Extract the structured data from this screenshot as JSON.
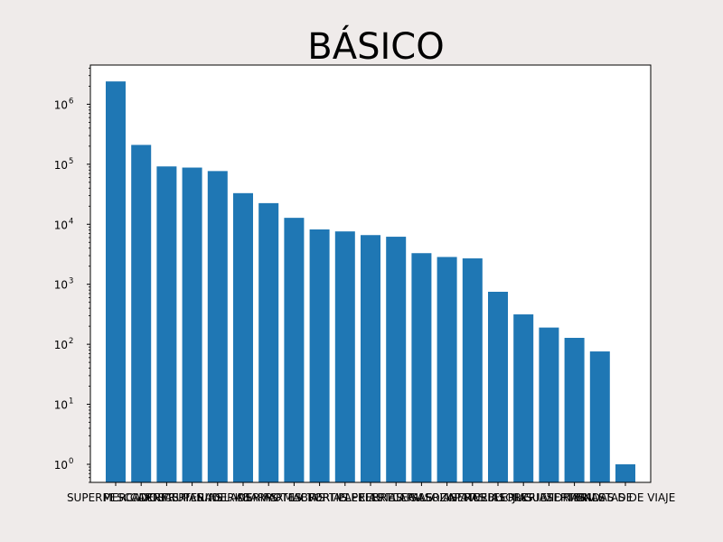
{
  "chart_data": {
    "type": "bar",
    "title": "BÁSICO",
    "xlabel": "",
    "ylabel": "",
    "yscale": "log",
    "ylim": [
      0.5,
      4500000
    ],
    "grid": false,
    "bar_color": "#1f77b4",
    "background": "#efebea",
    "ytick_base": "10",
    "ytick_exponents": [
      "0",
      "1",
      "2",
      "3",
      "4",
      "5",
      "6"
    ],
    "categories": [
      "SUPERMERCADOS",
      "PESCADERIAS",
      "CARNICERIAS",
      "FRUTERIAS",
      "PANADERIAS",
      "HELADERIAS",
      "ABARROTES",
      "FARMACIAS",
      "LIBRERIAS",
      "TORTILLERIAS",
      "PAPELERIAS",
      "FERRETERIAS",
      "TLAPALERIAS",
      "GASOLINERAS",
      "ZAPATERIAS",
      "MUEBLERIAS",
      "FLORERIAS",
      "JUGUETERIAS",
      "VIDRIERIAS",
      "TIENDAS DE",
      "MALETAS DE VIAJE"
    ],
    "values": [
      2400000,
      210000,
      92000,
      88000,
      77000,
      33000,
      22500,
      12800,
      8200,
      7600,
      6600,
      6200,
      3300,
      2850,
      2700,
      750,
      315,
      190,
      128,
      76,
      1
    ]
  }
}
